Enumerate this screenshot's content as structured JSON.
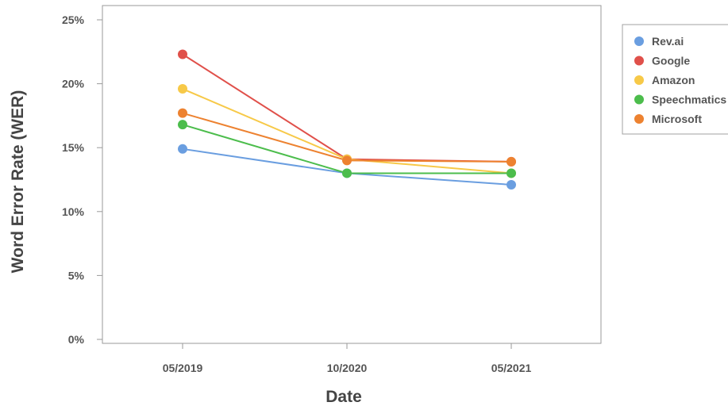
{
  "chart_data": {
    "type": "line",
    "x": [
      "05/2019",
      "10/2020",
      "05/2021"
    ],
    "xlabel": "Date",
    "ylabel": "Word Error Rate (WER)",
    "ylim": [
      0,
      25
    ],
    "y_ticks": [
      0,
      5,
      10,
      15,
      20,
      25
    ],
    "y_tick_labels": [
      "0%",
      "5%",
      "10%",
      "15%",
      "20%",
      "25%"
    ],
    "y_unit": "%",
    "grid": false,
    "legend_position": "top-right",
    "series": [
      {
        "name": "Rev.ai",
        "color": "#6a9ee0",
        "values": [
          14.9,
          13.0,
          12.1
        ]
      },
      {
        "name": "Google",
        "color": "#e0504a",
        "values": [
          22.3,
          14.1,
          13.9
        ]
      },
      {
        "name": "Amazon",
        "color": "#f7c948",
        "values": [
          19.6,
          14.1,
          13.0
        ]
      },
      {
        "name": "Speechmatics",
        "color": "#4cbd4c",
        "values": [
          16.8,
          13.0,
          13.0
        ]
      },
      {
        "name": "Microsoft",
        "color": "#ed8230",
        "values": [
          17.7,
          14.0,
          13.9
        ]
      }
    ],
    "legend_order": [
      "Rev.ai",
      "Google",
      "Amazon",
      "Speechmatics",
      "Microsoft"
    ],
    "draw_order": [
      "Rev.ai",
      "Google",
      "Amazon",
      "Speechmatics",
      "Microsoft"
    ]
  }
}
